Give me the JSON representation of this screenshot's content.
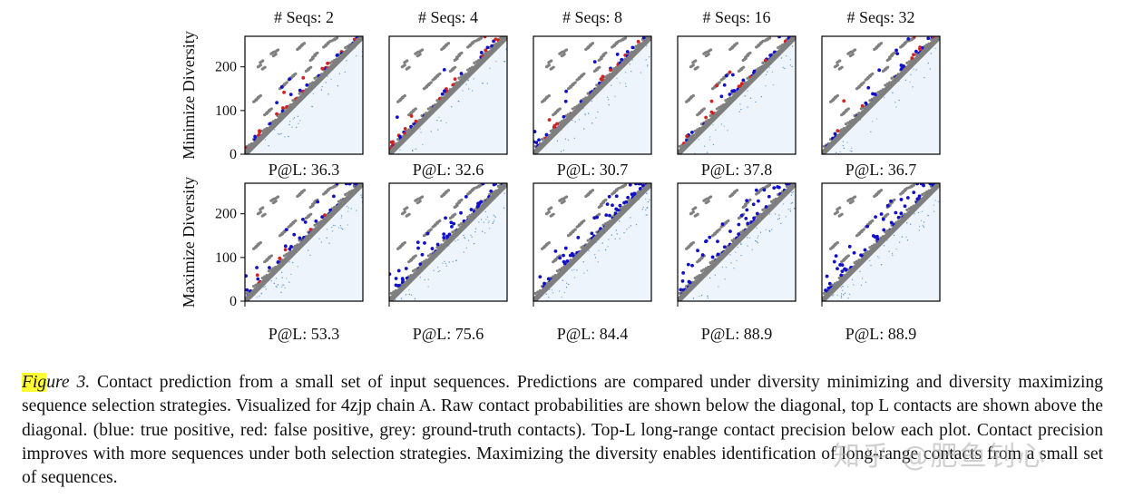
{
  "figure": {
    "row_labels": [
      "Minimize Diversity",
      "Maximize Diversity"
    ],
    "column_titles": [
      "# Seqs: 2",
      "# Seqs: 4",
      "# Seqs: 8",
      "# Seqs: 16",
      "# Seqs: 32"
    ],
    "precision_labels": [
      [
        "P@L: 36.3",
        "P@L: 32.6",
        "P@L: 30.7",
        "P@L: 37.8",
        "P@L: 36.7"
      ],
      [
        "P@L: 53.3",
        "P@L: 75.6",
        "P@L: 84.4",
        "P@L: 88.9",
        "P@L: 88.9"
      ]
    ],
    "y_ticks": [
      "0",
      "100",
      "200"
    ],
    "colors": {
      "true_positive": "#1010c8",
      "false_positive": "#d42020",
      "ground_truth": "#808080",
      "heatmap": "#3b7fc4"
    }
  },
  "chart_data": {
    "type": "heatmap",
    "y_range": [
      0,
      270
    ],
    "y_tick_values": [
      0,
      100,
      200
    ],
    "protein": "4zjp chain A",
    "panels": [
      {
        "strategy": "Minimize Diversity",
        "num_seqs": 2,
        "precision_at_L": 36.3
      },
      {
        "strategy": "Minimize Diversity",
        "num_seqs": 4,
        "precision_at_L": 32.6
      },
      {
        "strategy": "Minimize Diversity",
        "num_seqs": 8,
        "precision_at_L": 30.7
      },
      {
        "strategy": "Minimize Diversity",
        "num_seqs": 16,
        "precision_at_L": 37.8
      },
      {
        "strategy": "Minimize Diversity",
        "num_seqs": 32,
        "precision_at_L": 36.7
      },
      {
        "strategy": "Maximize Diversity",
        "num_seqs": 2,
        "precision_at_L": 53.3
      },
      {
        "strategy": "Maximize Diversity",
        "num_seqs": 4,
        "precision_at_L": 75.6
      },
      {
        "strategy": "Maximize Diversity",
        "num_seqs": 8,
        "precision_at_L": 84.4
      },
      {
        "strategy": "Maximize Diversity",
        "num_seqs": 16,
        "precision_at_L": 88.9
      },
      {
        "strategy": "Maximize Diversity",
        "num_seqs": 32,
        "precision_at_L": 88.9
      }
    ]
  },
  "caption": {
    "label": "Figure 3.",
    "label_highlight": "Fig",
    "label_rest": "ure 3.",
    "text": " Contact prediction from a small set of input sequences. Predictions are compared under diversity minimizing and diversity maximizing sequence selection strategies. Visualized for 4zjp chain A. Raw contact probabilities are shown below the diagonal, top L contacts are shown above the diagonal. (blue: true positive, red: false positive, grey: ground-truth contacts). Top-L long-range contact precision below each plot. Contact precision improves with more sequences under both selection strategies. Maximizing the diversity enables identification of long-range contacts from a small set of sequences."
  },
  "watermark": "知乎 @肥鱼钊心"
}
